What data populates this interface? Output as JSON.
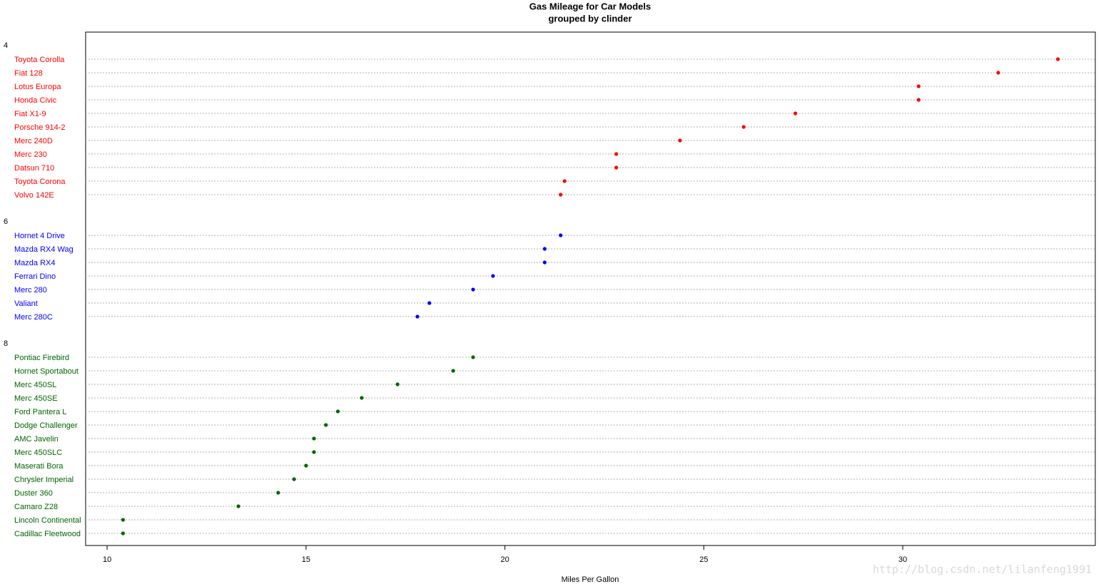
{
  "chart_data": {
    "type": "dot",
    "title": "Gas Mileage for Car Models",
    "subtitle": "grouped by clinder",
    "x_label": "Miles Per Gallon",
    "watermark": "http://blog.csdn.net/lilanfeng1991",
    "xlim": [
      9.46,
      34.84
    ],
    "xticks": [
      10,
      15,
      20,
      25,
      30
    ],
    "grid": true,
    "series": [
      {
        "name": "4",
        "color": "#ff0000",
        "categories": [
          "Toyota Corolla",
          "Fiat 128",
          "Lotus Europa",
          "Honda Civic",
          "Fiat X1-9",
          "Porsche 914-2",
          "Merc 240D",
          "Merc 230",
          "Datsun 710",
          "Toyota Corona",
          "Volvo 142E"
        ],
        "values": [
          33.9,
          32.4,
          30.4,
          30.4,
          27.3,
          26.0,
          24.4,
          22.8,
          22.8,
          21.5,
          21.4
        ]
      },
      {
        "name": "6",
        "color": "#0000ff",
        "categories": [
          "Hornet 4 Drive",
          "Mazda RX4 Wag",
          "Mazda RX4",
          "Ferrari Dino",
          "Merc 280",
          "Valiant",
          "Merc 280C"
        ],
        "values": [
          21.4,
          21.0,
          21.0,
          19.7,
          19.2,
          18.1,
          17.8
        ]
      },
      {
        "name": "8",
        "color": "#006400",
        "categories": [
          "Pontiac Firebird",
          "Hornet Sportabout",
          "Merc 450SL",
          "Merc 450SE",
          "Ford Pantera L",
          "Dodge Challenger",
          "AMC Javelin",
          "Merc 450SLC",
          "Maserati Bora",
          "Chrysler Imperial",
          "Duster 360",
          "Camaro Z28",
          "Lincoln Continental",
          "Cadillac Fleetwood"
        ],
        "values": [
          19.2,
          18.7,
          17.3,
          16.4,
          15.8,
          15.5,
          15.2,
          15.2,
          15.0,
          14.7,
          14.3,
          13.3,
          10.4,
          10.4
        ]
      }
    ]
  }
}
